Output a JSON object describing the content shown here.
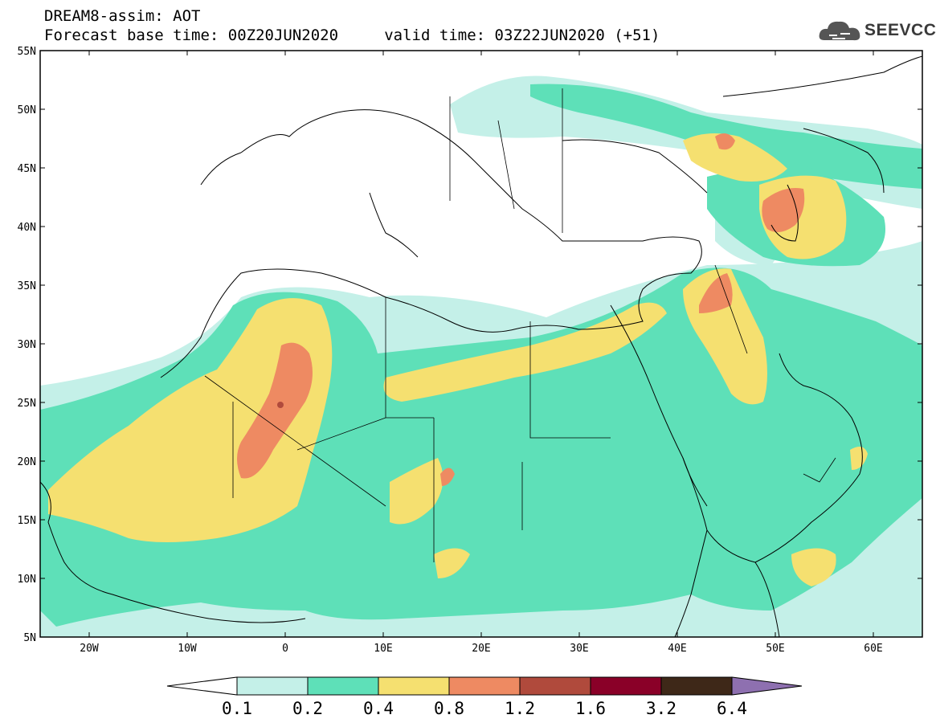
{
  "header": {
    "title_line1": "DREAM8-assim: AOT",
    "title_line2": "Forecast base time: 00Z20JUN2020     valid time: 03Z22JUN2020 (+51)"
  },
  "logo": {
    "text": "SEEVCCC",
    "icon": "cloud-icon"
  },
  "map": {
    "projection": "lat-lon",
    "lon_range": [
      -25,
      65
    ],
    "lat_range": [
      5,
      55
    ],
    "lat_ticks": [
      "55N",
      "50N",
      "45N",
      "40N",
      "35N",
      "30N",
      "25N",
      "20N",
      "15N",
      "10N",
      "5N"
    ],
    "lon_ticks": [
      "20W",
      "10W",
      "0",
      "10E",
      "20E",
      "30E",
      "40E",
      "50E",
      "60E"
    ]
  },
  "colorbar": {
    "levels": [
      "0.1",
      "0.2",
      "0.4",
      "0.8",
      "1.2",
      "1.6",
      "3.2",
      "6.4"
    ],
    "colors": [
      "#c4f0e8",
      "#5ee0b8",
      "#f5e070",
      "#ee8a62",
      "#b04a3c",
      "#8a0028",
      "#3e2818",
      "#8e70b0"
    ]
  }
}
